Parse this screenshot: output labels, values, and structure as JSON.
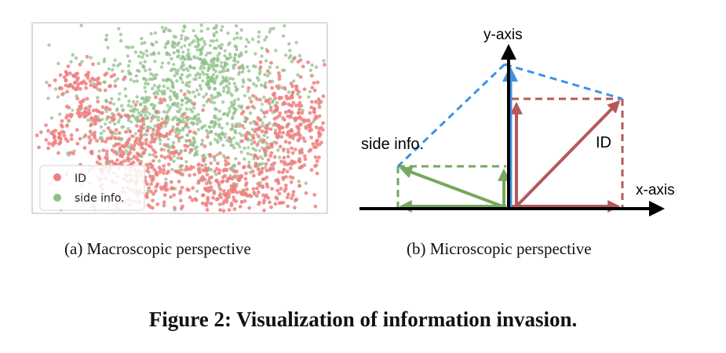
{
  "figure": {
    "caption": "Figure 2: Visualization of information invasion.",
    "subcaption_a": "(a)  Macroscopic perspective",
    "subcaption_b": "(b)  Microscopic perspective"
  },
  "panel_a": {
    "legend": [
      {
        "label": "ID",
        "color": "#ef8080"
      },
      {
        "label": "side info.",
        "color": "#8fbf88"
      }
    ]
  },
  "panel_b": {
    "x_axis_label": "x-axis",
    "y_axis_label": "y-axis",
    "id_label": "ID",
    "side_info_label": "side info.",
    "colors": {
      "id_vector": "#b5585a",
      "side_info_vector": "#76a85e",
      "sum_vector": "#3b94e4",
      "axis": "#000000"
    }
  }
}
